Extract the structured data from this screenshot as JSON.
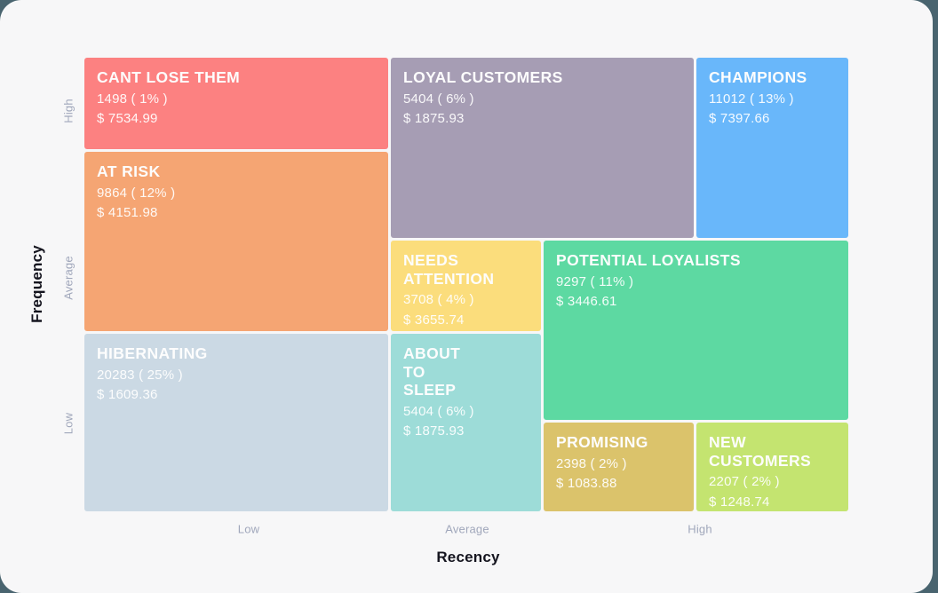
{
  "chart_data": {
    "type": "treemap",
    "variant": "rfm-segment-grid",
    "xlabel": "Recency",
    "ylabel": "Frequency",
    "x_ticks": [
      "Low",
      "Average",
      "High"
    ],
    "y_ticks": [
      "High",
      "Average",
      "Low"
    ],
    "grid": "off",
    "segments": [
      {
        "label": "CANT LOSE THEM",
        "count": 1498,
        "percent": 1,
        "monetary_value": 7534.99,
        "count_display": "1498 ( 1% )",
        "monetary_display": "$ 7534.99",
        "color": "#FC8181",
        "recency": "Low",
        "frequency": "High"
      },
      {
        "label": "LOYAL CUSTOMERS",
        "count": 5404,
        "percent": 6,
        "monetary_value": 1875.93,
        "count_display": "5404 ( 6% )",
        "monetary_display": "$ 1875.93",
        "color": "#A69DB4",
        "recency": "Average",
        "frequency": "High"
      },
      {
        "label": "CHAMPIONS",
        "count": 11012,
        "percent": 13,
        "monetary_value": 7397.66,
        "count_display": "11012 ( 13% )",
        "monetary_display": "$ 7397.66",
        "color": "#69B7FA",
        "recency": "High",
        "frequency": "High"
      },
      {
        "label": "AT RISK",
        "count": 9864,
        "percent": 12,
        "monetary_value": 4151.98,
        "count_display": "9864 ( 12% )",
        "monetary_display": "$ 4151.98",
        "color": "#F5A573",
        "recency": "Low",
        "frequency": "Average"
      },
      {
        "label": "NEEDS ATTENTION",
        "count": 3708,
        "percent": 4,
        "monetary_value": 3655.74,
        "count_display": "3708 ( 4% )",
        "monetary_display": "$ 3655.74",
        "color": "#FBDD7C",
        "recency": "Average",
        "frequency": "Average"
      },
      {
        "label": "POTENTIAL LOYALISTS",
        "count": 9297,
        "percent": 11,
        "monetary_value": 3446.61,
        "count_display": "9297 ( 11% )",
        "monetary_display": "$ 3446.61",
        "color": "#5DD9A2",
        "recency": "High",
        "frequency": "Average"
      },
      {
        "label": "HIBERNATING",
        "count": 20283,
        "percent": 25,
        "monetary_value": 1609.36,
        "count_display": "20283 ( 25% )",
        "monetary_display": "$ 1609.36",
        "color": "#CBD9E4",
        "recency": "Low",
        "frequency": "Low"
      },
      {
        "label": "ABOUT TO SLEEP",
        "count": 5404,
        "percent": 6,
        "monetary_value": 1875.93,
        "count_display": "5404 ( 6% )",
        "monetary_display": "$ 1875.93",
        "color": "#9DDCD8",
        "recency": "Average",
        "frequency": "Low"
      },
      {
        "label": "PROMISING",
        "count": 2398,
        "percent": 2,
        "monetary_value": 1083.88,
        "count_display": "2398 ( 2% )",
        "monetary_display": "$ 1083.88",
        "color": "#DBC36B",
        "recency": "High",
        "frequency": "Low"
      },
      {
        "label": "NEW CUSTOMERS",
        "count": 2207,
        "percent": 2,
        "monetary_value": 1248.74,
        "count_display": "2207 ( 2% )",
        "monetary_display": "$ 1248.74",
        "color": "#C4E470",
        "recency": "High",
        "frequency": "Low"
      }
    ]
  }
}
